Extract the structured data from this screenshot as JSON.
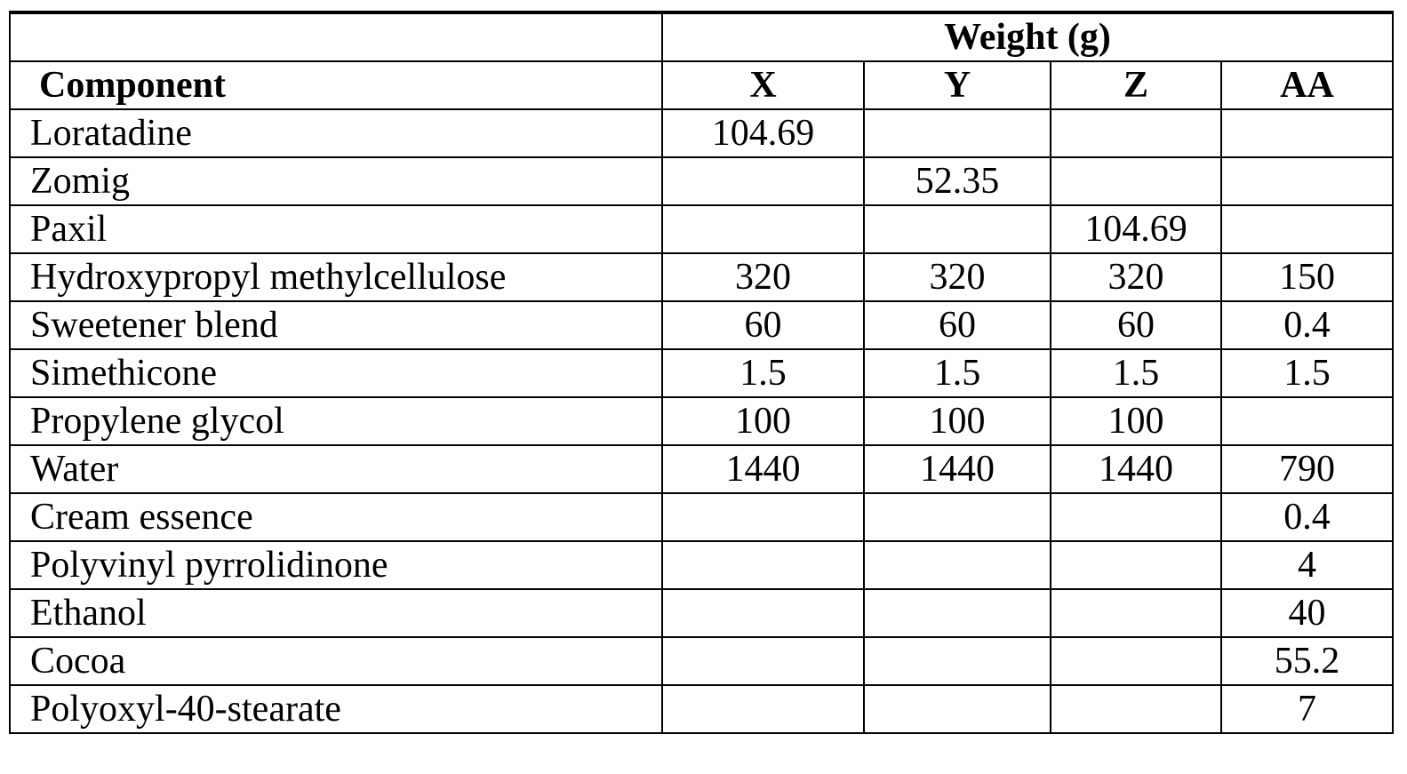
{
  "table": {
    "group_header": "Weight (g)",
    "component_header": "Component",
    "columns": [
      "X",
      "Y",
      "Z",
      "AA"
    ],
    "rows": [
      {
        "name": "Loratadine",
        "values": [
          "104.69",
          "",
          "",
          ""
        ]
      },
      {
        "name": "Zomig",
        "values": [
          "",
          "52.35",
          "",
          ""
        ]
      },
      {
        "name": "Paxil",
        "values": [
          "",
          "",
          "104.69",
          ""
        ]
      },
      {
        "name": "Hydroxypropyl methylcellulose",
        "values": [
          "320",
          "320",
          "320",
          "150"
        ]
      },
      {
        "name": "Sweetener blend",
        "values": [
          "60",
          "60",
          "60",
          "0.4"
        ]
      },
      {
        "name": "Simethicone",
        "values": [
          "1.5",
          "1.5",
          "1.5",
          "1.5"
        ]
      },
      {
        "name": "Propylene glycol",
        "values": [
          "100",
          "100",
          "100",
          ""
        ]
      },
      {
        "name": "Water",
        "values": [
          "1440",
          "1440",
          "1440",
          "790"
        ]
      },
      {
        "name": "Cream essence",
        "values": [
          "",
          "",
          "",
          "0.4"
        ]
      },
      {
        "name": "Polyvinyl pyrrolidinone",
        "values": [
          "",
          "",
          "",
          "4"
        ]
      },
      {
        "name": "Ethanol",
        "values": [
          "",
          "",
          "",
          "40"
        ]
      },
      {
        "name": "Cocoa",
        "values": [
          "",
          "",
          "",
          "55.2"
        ]
      },
      {
        "name": "Polyoxyl-40-stearate",
        "values": [
          "",
          "",
          "",
          "7"
        ]
      }
    ]
  }
}
